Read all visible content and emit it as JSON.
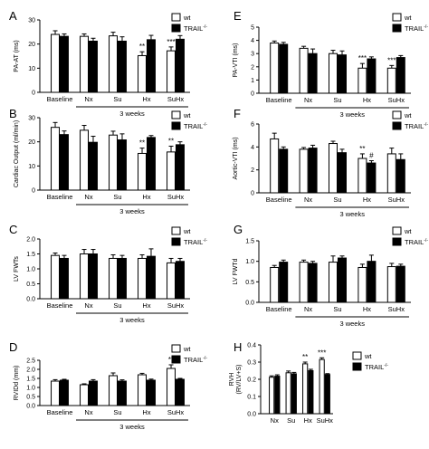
{
  "legend": {
    "wt": "wt",
    "trail": "TRAIL",
    "trail_sup": "-/-"
  },
  "colors": {
    "wt_fill": "#ffffff",
    "trail_fill": "#000000",
    "stroke": "#000000"
  },
  "chart_data": [
    {
      "panel": "A",
      "type": "bar",
      "ylabel": "PA-AT (ms)",
      "ylim": [
        0,
        30
      ],
      "yticks": [
        0,
        10,
        20,
        30
      ],
      "categories": [
        "Baseline",
        "Nx",
        "Su",
        "Hx",
        "SuHx"
      ],
      "group_label": "3 weeks",
      "series": [
        {
          "name": "wt",
          "values": [
            24,
            23.2,
            23.4,
            15.2,
            17.2
          ],
          "errors": [
            1.5,
            1.0,
            1.5,
            1.6,
            1.6
          ]
        },
        {
          "name": "TRAIL",
          "values": [
            23.2,
            21.2,
            21.2,
            21.8,
            22
          ],
          "errors": [
            1.0,
            1.2,
            1.8,
            1.8,
            1.5
          ]
        }
      ],
      "annotations": [
        {
          "category": "Hx",
          "text": "**"
        },
        {
          "category": "SuHx",
          "text": "***"
        }
      ]
    },
    {
      "panel": "B",
      "type": "bar",
      "ylabel": "Cardiac Output (ml/min)",
      "ylim": [
        0,
        30
      ],
      "yticks": [
        0,
        10,
        20,
        30
      ],
      "categories": [
        "Baseline",
        "Nx",
        "Su",
        "Hx",
        "SuHx"
      ],
      "group_label": "3 weeks",
      "series": [
        {
          "name": "wt",
          "values": [
            26,
            24.8,
            22.8,
            15.2,
            15.8
          ],
          "errors": [
            2.0,
            2.0,
            1.6,
            2.2,
            2.4
          ]
        },
        {
          "name": "TRAIL",
          "values": [
            23,
            19.8,
            20.8,
            21.8,
            18.8
          ],
          "errors": [
            1.5,
            2.5,
            2.5,
            0.8,
            1.2
          ]
        }
      ],
      "annotations": [
        {
          "category": "Hx",
          "text": "**"
        },
        {
          "category": "SuHx",
          "text": "**"
        }
      ]
    },
    {
      "panel": "C",
      "type": "bar",
      "ylabel": "LV FWTs",
      "ylim": [
        0,
        2.0
      ],
      "yticks": [
        0,
        0.5,
        1.0,
        1.5,
        2.0
      ],
      "categories": [
        "Baseline",
        "Nx",
        "Su",
        "Hx",
        "SuHx"
      ],
      "group_label": "3 weeks",
      "series": [
        {
          "name": "wt",
          "values": [
            1.45,
            1.5,
            1.35,
            1.35,
            1.2
          ],
          "errors": [
            0.08,
            0.15,
            0.12,
            0.12,
            0.15
          ]
        },
        {
          "name": "TRAIL",
          "values": [
            1.35,
            1.5,
            1.35,
            1.42,
            1.25
          ],
          "errors": [
            0.1,
            0.15,
            0.1,
            0.25,
            0.1
          ]
        }
      ],
      "annotations": []
    },
    {
      "panel": "D",
      "type": "bar",
      "ylabel": "RVIDd (mm)",
      "ylim": [
        0,
        2.5
      ],
      "yticks": [
        0,
        0.5,
        1.0,
        1.5,
        2.0,
        2.5
      ],
      "categories": [
        "Baseline",
        "Nx",
        "Su",
        "Hx",
        "SuHx"
      ],
      "group_label": "3 weeks",
      "series": [
        {
          "name": "wt",
          "values": [
            1.35,
            1.15,
            1.65,
            1.7,
            2.05
          ],
          "errors": [
            0.08,
            0.05,
            0.15,
            0.08,
            0.2
          ]
        },
        {
          "name": "TRAIL",
          "values": [
            1.4,
            1.35,
            1.35,
            1.4,
            1.45
          ],
          "errors": [
            0.05,
            0.08,
            0.07,
            0.06,
            0.05
          ]
        }
      ],
      "annotations": [
        {
          "category": "SuHx",
          "text": "**"
        }
      ]
    },
    {
      "panel": "E",
      "type": "bar",
      "ylabel": "PA-VTI (ms)",
      "ylim": [
        0,
        5
      ],
      "yticks": [
        0,
        1,
        2,
        3,
        4,
        5
      ],
      "categories": [
        "Baseline",
        "Nx",
        "Su",
        "Hx",
        "SuHx"
      ],
      "group_label": "3 weeks",
      "series": [
        {
          "name": "wt",
          "values": [
            3.8,
            3.4,
            3.0,
            1.9,
            1.9
          ],
          "errors": [
            0.15,
            0.15,
            0.25,
            0.35,
            0.2
          ]
        },
        {
          "name": "TRAIL",
          "values": [
            3.7,
            3.0,
            2.9,
            2.6,
            2.7
          ],
          "errors": [
            0.15,
            0.35,
            0.3,
            0.15,
            0.15
          ]
        }
      ],
      "annotations": [
        {
          "category": "Hx",
          "text": "***"
        },
        {
          "category": "SuHx",
          "text": "***"
        }
      ]
    },
    {
      "panel": "F",
      "type": "bar",
      "ylabel": "Aortic-VTI (ms)",
      "ylim": [
        0,
        6
      ],
      "yticks": [
        0,
        2,
        4,
        6
      ],
      "categories": [
        "Baseline",
        "Nx",
        "Su",
        "Hx",
        "SuHx"
      ],
      "group_label": "3 weeks",
      "series": [
        {
          "name": "wt",
          "values": [
            4.7,
            3.8,
            4.3,
            3.0,
            3.4
          ],
          "errors": [
            0.5,
            0.15,
            0.2,
            0.4,
            0.5
          ]
        },
        {
          "name": "TRAIL",
          "values": [
            3.8,
            3.9,
            3.5,
            2.6,
            2.9
          ],
          "errors": [
            0.2,
            0.25,
            0.3,
            0.2,
            0.5
          ]
        }
      ],
      "annotations": [
        {
          "category": "Hx",
          "text": "**"
        },
        {
          "category": "Hx",
          "series": "TRAIL",
          "text": "#"
        }
      ]
    },
    {
      "panel": "G",
      "type": "bar",
      "ylabel": "LV FWTd",
      "ylim": [
        0,
        1.5
      ],
      "yticks": [
        0,
        0.5,
        1.0,
        1.5
      ],
      "categories": [
        "Baseline",
        "Nx",
        "Su",
        "Hx",
        "SuHx"
      ],
      "group_label": "3 weeks",
      "series": [
        {
          "name": "wt",
          "values": [
            0.85,
            0.98,
            0.98,
            0.85,
            0.87
          ],
          "errors": [
            0.05,
            0.05,
            0.15,
            0.08,
            0.08
          ]
        },
        {
          "name": "TRAIL",
          "values": [
            0.98,
            0.95,
            1.08,
            1.0,
            0.88
          ],
          "errors": [
            0.05,
            0.05,
            0.05,
            0.15,
            0.05
          ]
        }
      ],
      "annotations": []
    },
    {
      "panel": "H",
      "type": "bar",
      "ylabel": "RVH (RV/LV+S)",
      "ylim": [
        0,
        0.4
      ],
      "yticks": [
        0,
        0.1,
        0.2,
        0.3,
        0.4
      ],
      "categories": [
        "Nx",
        "Su",
        "Hx",
        "SuHx"
      ],
      "group_label": "",
      "series": [
        {
          "name": "wt",
          "values": [
            0.212,
            0.238,
            0.29,
            0.315
          ],
          "errors": [
            0.008,
            0.01,
            0.01,
            0.01
          ]
        },
        {
          "name": "TRAIL",
          "values": [
            0.218,
            0.232,
            0.25,
            0.228
          ],
          "errors": [
            0.008,
            0.008,
            0.008,
            0.005
          ]
        }
      ],
      "annotations": [
        {
          "category": "Hx",
          "text": "**"
        },
        {
          "category": "SuHx",
          "text": "***"
        }
      ]
    }
  ]
}
